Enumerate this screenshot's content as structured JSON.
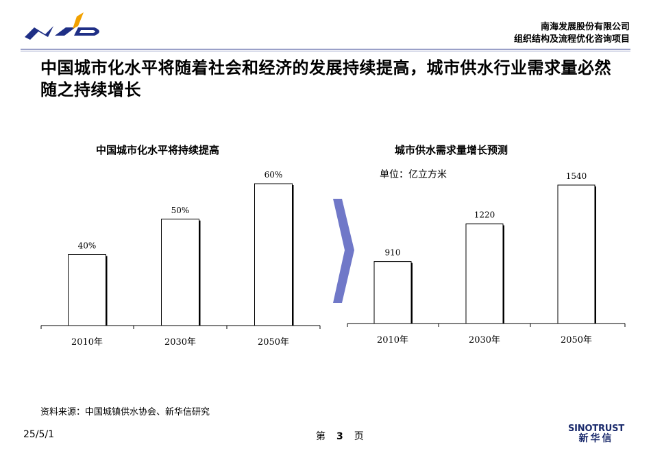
{
  "header": {
    "company": "南海发展股份有限公司",
    "project": "组织结构及流程优化咨询项目",
    "logo_text": "NHD",
    "colors": {
      "logo_blue": "#1f2f86",
      "logo_orange": "#f2a100",
      "rule": "#9aa0c8"
    }
  },
  "headline": "中国城市化水平将随着社会和经济的发展持续提高，城市供水行业需求量必然随之持续增长",
  "chart_data": [
    {
      "type": "bar",
      "title": "中国城市化水平将持续提高",
      "categories": [
        "2010年",
        "2030年",
        "2050年"
      ],
      "values": [
        40,
        50,
        60
      ],
      "value_labels": [
        "40%",
        "50%",
        "60%"
      ],
      "ylim": [
        20,
        60
      ],
      "grid": false
    },
    {
      "type": "bar",
      "title": "城市供水需求量增长预测",
      "unit": "单位：亿立方米",
      "categories": [
        "2010年",
        "2030年",
        "2050年"
      ],
      "values": [
        910,
        1220,
        1540
      ],
      "value_labels": [
        "910",
        "1220",
        "1540"
      ],
      "ylim": [
        400,
        1540
      ],
      "grid": false
    }
  ],
  "arrow": {
    "color": "#7078c8",
    "icon": "chevron-right-icon"
  },
  "footer": {
    "source": "资料来源：中国城镇供水协会、新华信研究",
    "date": "25/5/1",
    "page_prefix": "第",
    "page_number": "3",
    "page_suffix": "页",
    "brand_en": "SINOTRUST",
    "brand_cn": "新华信"
  }
}
